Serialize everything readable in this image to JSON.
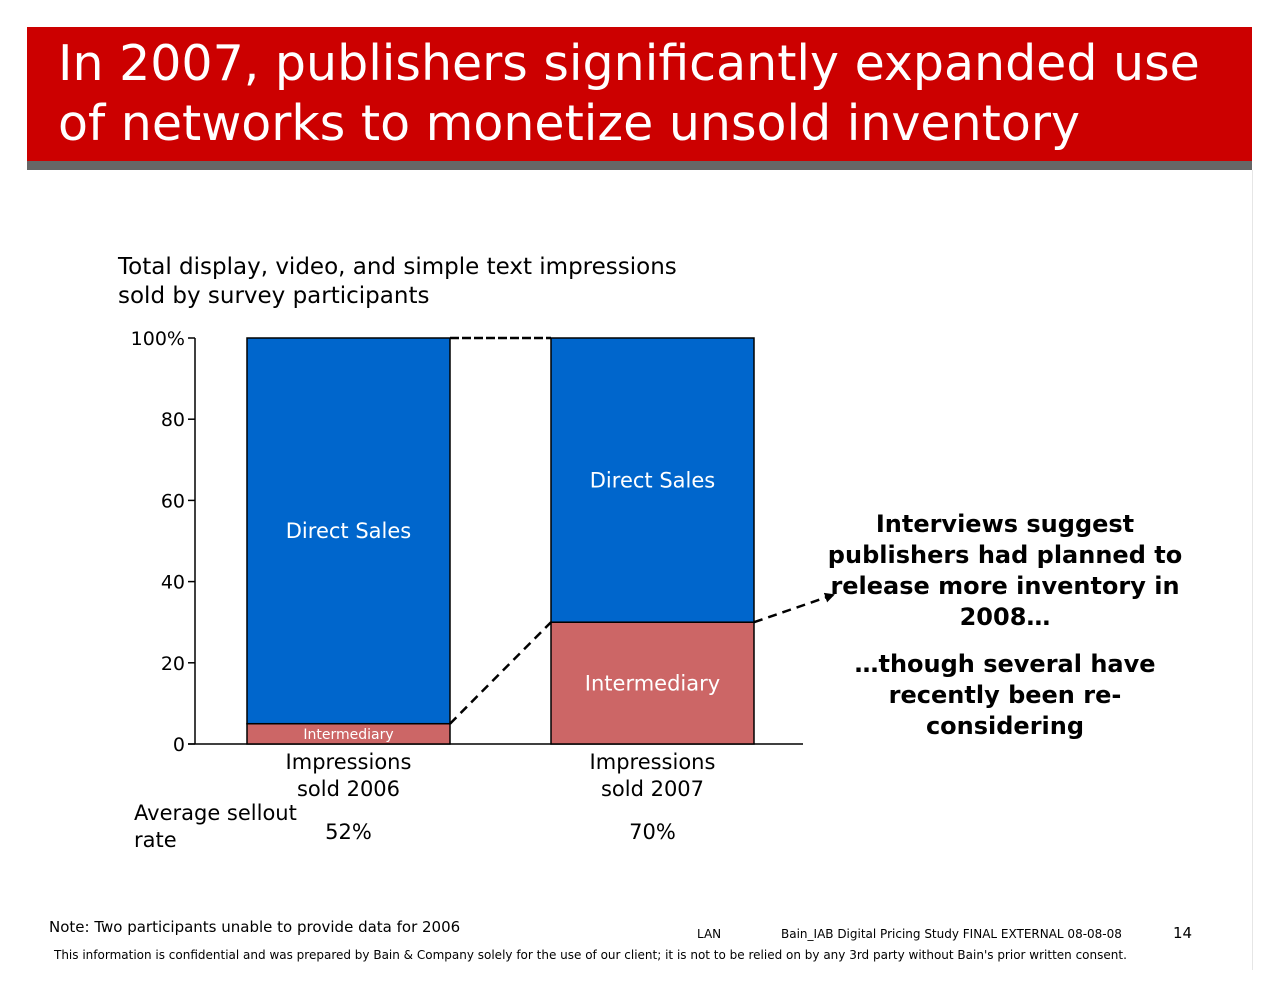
{
  "title": "In 2007, publishers significantly expanded use of networks to monetize unsold inventory",
  "chart_data": {
    "type": "bar",
    "stacked": true,
    "title": "Total display, video, and simple text impressions sold by survey participants",
    "ylim": [
      0,
      100
    ],
    "yticks": [
      {
        "value": 0,
        "label": "0"
      },
      {
        "value": 20,
        "label": "20"
      },
      {
        "value": 40,
        "label": "40"
      },
      {
        "value": 60,
        "label": "60"
      },
      {
        "value": 80,
        "label": "80"
      },
      {
        "value": 100,
        "label": "100%"
      }
    ],
    "categories": [
      "Impressions sold 2006",
      "Impressions sold 2007"
    ],
    "series": [
      {
        "name": "Intermediary",
        "values": [
          5,
          30
        ],
        "color": "#cc6666"
      },
      {
        "name": "Direct Sales",
        "values": [
          95,
          70
        ],
        "color": "#0066cc"
      }
    ],
    "sellout_label": "Average sellout rate",
    "sellout_values": [
      "52%",
      "70%"
    ]
  },
  "callout": {
    "primary": "Interviews suggest publishers had planned to release more inventory in 2008…",
    "secondary": "…though several have recently been re-considering"
  },
  "footer": {
    "note": "Note: Two participants unable to provide data for 2006",
    "lan": "LAN",
    "study": "Bain_IAB Digital Pricing Study FINAL EXTERNAL 08-08-08",
    "page": "14",
    "confidential": "This information is confidential and was prepared by Bain & Company solely for the use of our client; it is not to be relied on by any 3rd party without Bain's prior written consent."
  },
  "colors": {
    "title_bar": "#cc0000",
    "title_shadow": "#666666",
    "direct_sales": "#0066cc",
    "intermediary": "#cc6666"
  }
}
